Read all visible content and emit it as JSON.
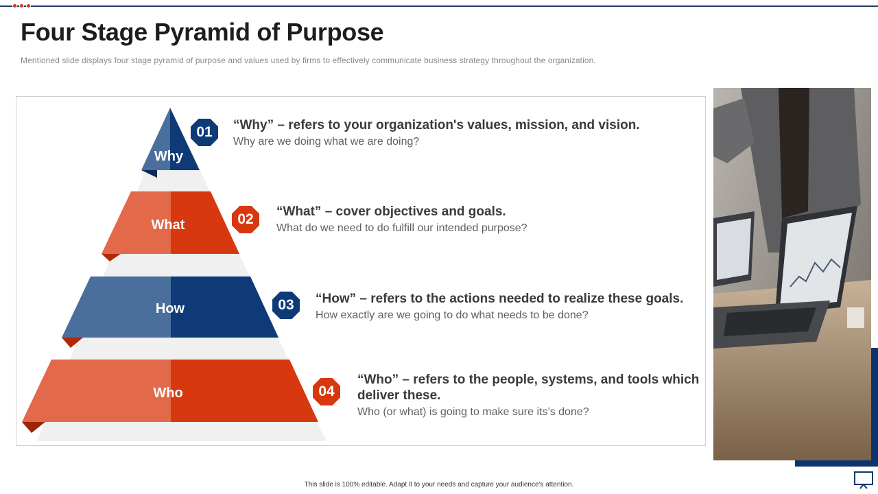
{
  "slide": {
    "title": "Four Stage Pyramid of Purpose",
    "subtitle": "Mentioned slide displays four stage pyramid of purpose and values used by firms to effectively communicate business strategy throughout the organization.",
    "footer": "This slide is 100% editable. Adapt it to your needs and capture your audience's attention."
  },
  "pyramid": {
    "tiers": [
      {
        "label": "Why",
        "number": "01",
        "heading": "“Why” – refers to your organization's values, mission, and vision.",
        "description": "Why are we doing what we are doing?",
        "color": "blue"
      },
      {
        "label": "What",
        "number": "02",
        "heading": "“What” – cover objectives and goals.",
        "description": "What do we need to do fulfill our intended purpose?",
        "color": "red"
      },
      {
        "label": "How",
        "number": "03",
        "heading": "“How” – refers to the actions needed to realize these goals.",
        "description": "How exactly are we going to do what needs to be done?",
        "color": "blue"
      },
      {
        "label": "Who",
        "number": "04",
        "heading": "“Who” – refers to the people, systems, and tools which deliver these.",
        "description": "Who (or what) is going to make sure its’s done?",
        "color": "red"
      }
    ]
  },
  "colors": {
    "blue_dark": "#0e3a78",
    "blue_light": "#4a6f9c",
    "red_dark": "#d8380f",
    "red_light": "#e2694a",
    "accent_navy": "#0e3470"
  },
  "icons": {
    "header_dots": "dots-decoration-icon",
    "presentation": "presentation-screen-icon"
  }
}
